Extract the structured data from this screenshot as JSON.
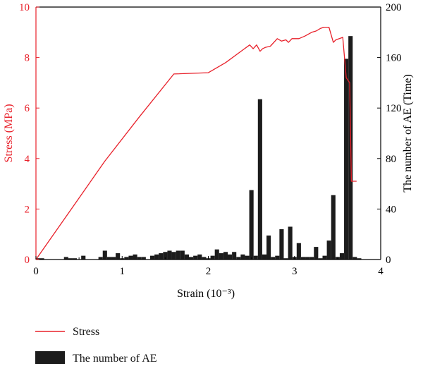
{
  "chart_data": {
    "type": "bar+line",
    "xlabel": "Strain (10⁻³)",
    "ylabel_left": "Stress (MPa)",
    "ylabel_right": "The number of AE (Time)",
    "xlim": [
      0,
      4
    ],
    "ylim_left": [
      0,
      10
    ],
    "ylim_right": [
      0,
      200
    ],
    "x_ticks": [
      "0",
      "1",
      "2",
      "3",
      "4"
    ],
    "y_left_ticks": [
      "0",
      "2",
      "4",
      "6",
      "8",
      "10"
    ],
    "y_right_ticks": [
      "0",
      "40",
      "80",
      "120",
      "160",
      "200"
    ],
    "legend_position": "bottom",
    "colors": {
      "stress": "#e8202a",
      "ae": "#1c1c1c",
      "axis": "#000000"
    },
    "series": [
      {
        "name": "Stress",
        "type": "line",
        "axis": "left",
        "x": [
          0.0,
          0.4,
          0.8,
          1.2,
          1.6,
          2.0,
          2.2,
          2.4,
          2.48,
          2.52,
          2.56,
          2.6,
          2.63,
          2.66,
          2.72,
          2.8,
          2.85,
          2.9,
          2.93,
          2.97,
          3.05,
          3.12,
          3.2,
          3.25,
          3.3,
          3.34,
          3.4,
          3.45,
          3.48,
          3.52,
          3.56,
          3.6,
          3.64,
          3.66,
          3.69,
          3.72
        ],
        "y": [
          0.0,
          1.95,
          3.9,
          5.65,
          7.35,
          7.4,
          7.8,
          8.3,
          8.5,
          8.35,
          8.5,
          8.25,
          8.35,
          8.4,
          8.45,
          8.75,
          8.65,
          8.7,
          8.6,
          8.75,
          8.75,
          8.85,
          9.0,
          9.05,
          9.15,
          9.2,
          9.2,
          8.6,
          8.7,
          8.75,
          8.8,
          7.2,
          7.0,
          3.1,
          3.1,
          3.1
        ]
      },
      {
        "name": "The number of AE",
        "type": "bar",
        "axis": "right",
        "bar_width": 0.05,
        "x": [
          0.02,
          0.07,
          0.1,
          0.35,
          0.4,
          0.45,
          0.55,
          0.75,
          0.8,
          0.85,
          0.9,
          0.95,
          1.0,
          1.05,
          1.1,
          1.15,
          1.2,
          1.25,
          1.35,
          1.4,
          1.45,
          1.5,
          1.55,
          1.6,
          1.65,
          1.7,
          1.75,
          1.8,
          1.85,
          1.9,
          1.95,
          2.0,
          2.05,
          2.1,
          2.15,
          2.2,
          2.25,
          2.3,
          2.35,
          2.4,
          2.45,
          2.5,
          2.55,
          2.6,
          2.65,
          2.7,
          2.75,
          2.8,
          2.85,
          2.9,
          2.95,
          3.0,
          3.05,
          3.1,
          3.15,
          3.2,
          3.25,
          3.3,
          3.35,
          3.4,
          3.45,
          3.5,
          3.55,
          3.6,
          3.65,
          3.7,
          3.75
        ],
        "values": [
          1,
          1,
          0,
          2,
          1,
          1,
          3,
          2,
          7,
          2,
          2,
          5,
          1,
          2,
          3,
          4,
          2,
          2,
          3,
          4,
          5,
          6,
          7,
          6,
          7,
          7,
          4,
          2,
          3,
          4,
          2,
          1,
          3,
          8,
          5,
          6,
          4,
          6,
          2,
          4,
          3,
          55,
          3,
          127,
          4,
          19,
          2,
          3,
          24,
          1,
          26,
          2,
          13,
          2,
          2,
          2,
          10,
          1,
          3,
          15,
          51,
          2,
          5,
          159,
          177,
          2,
          1
        ]
      }
    ]
  }
}
